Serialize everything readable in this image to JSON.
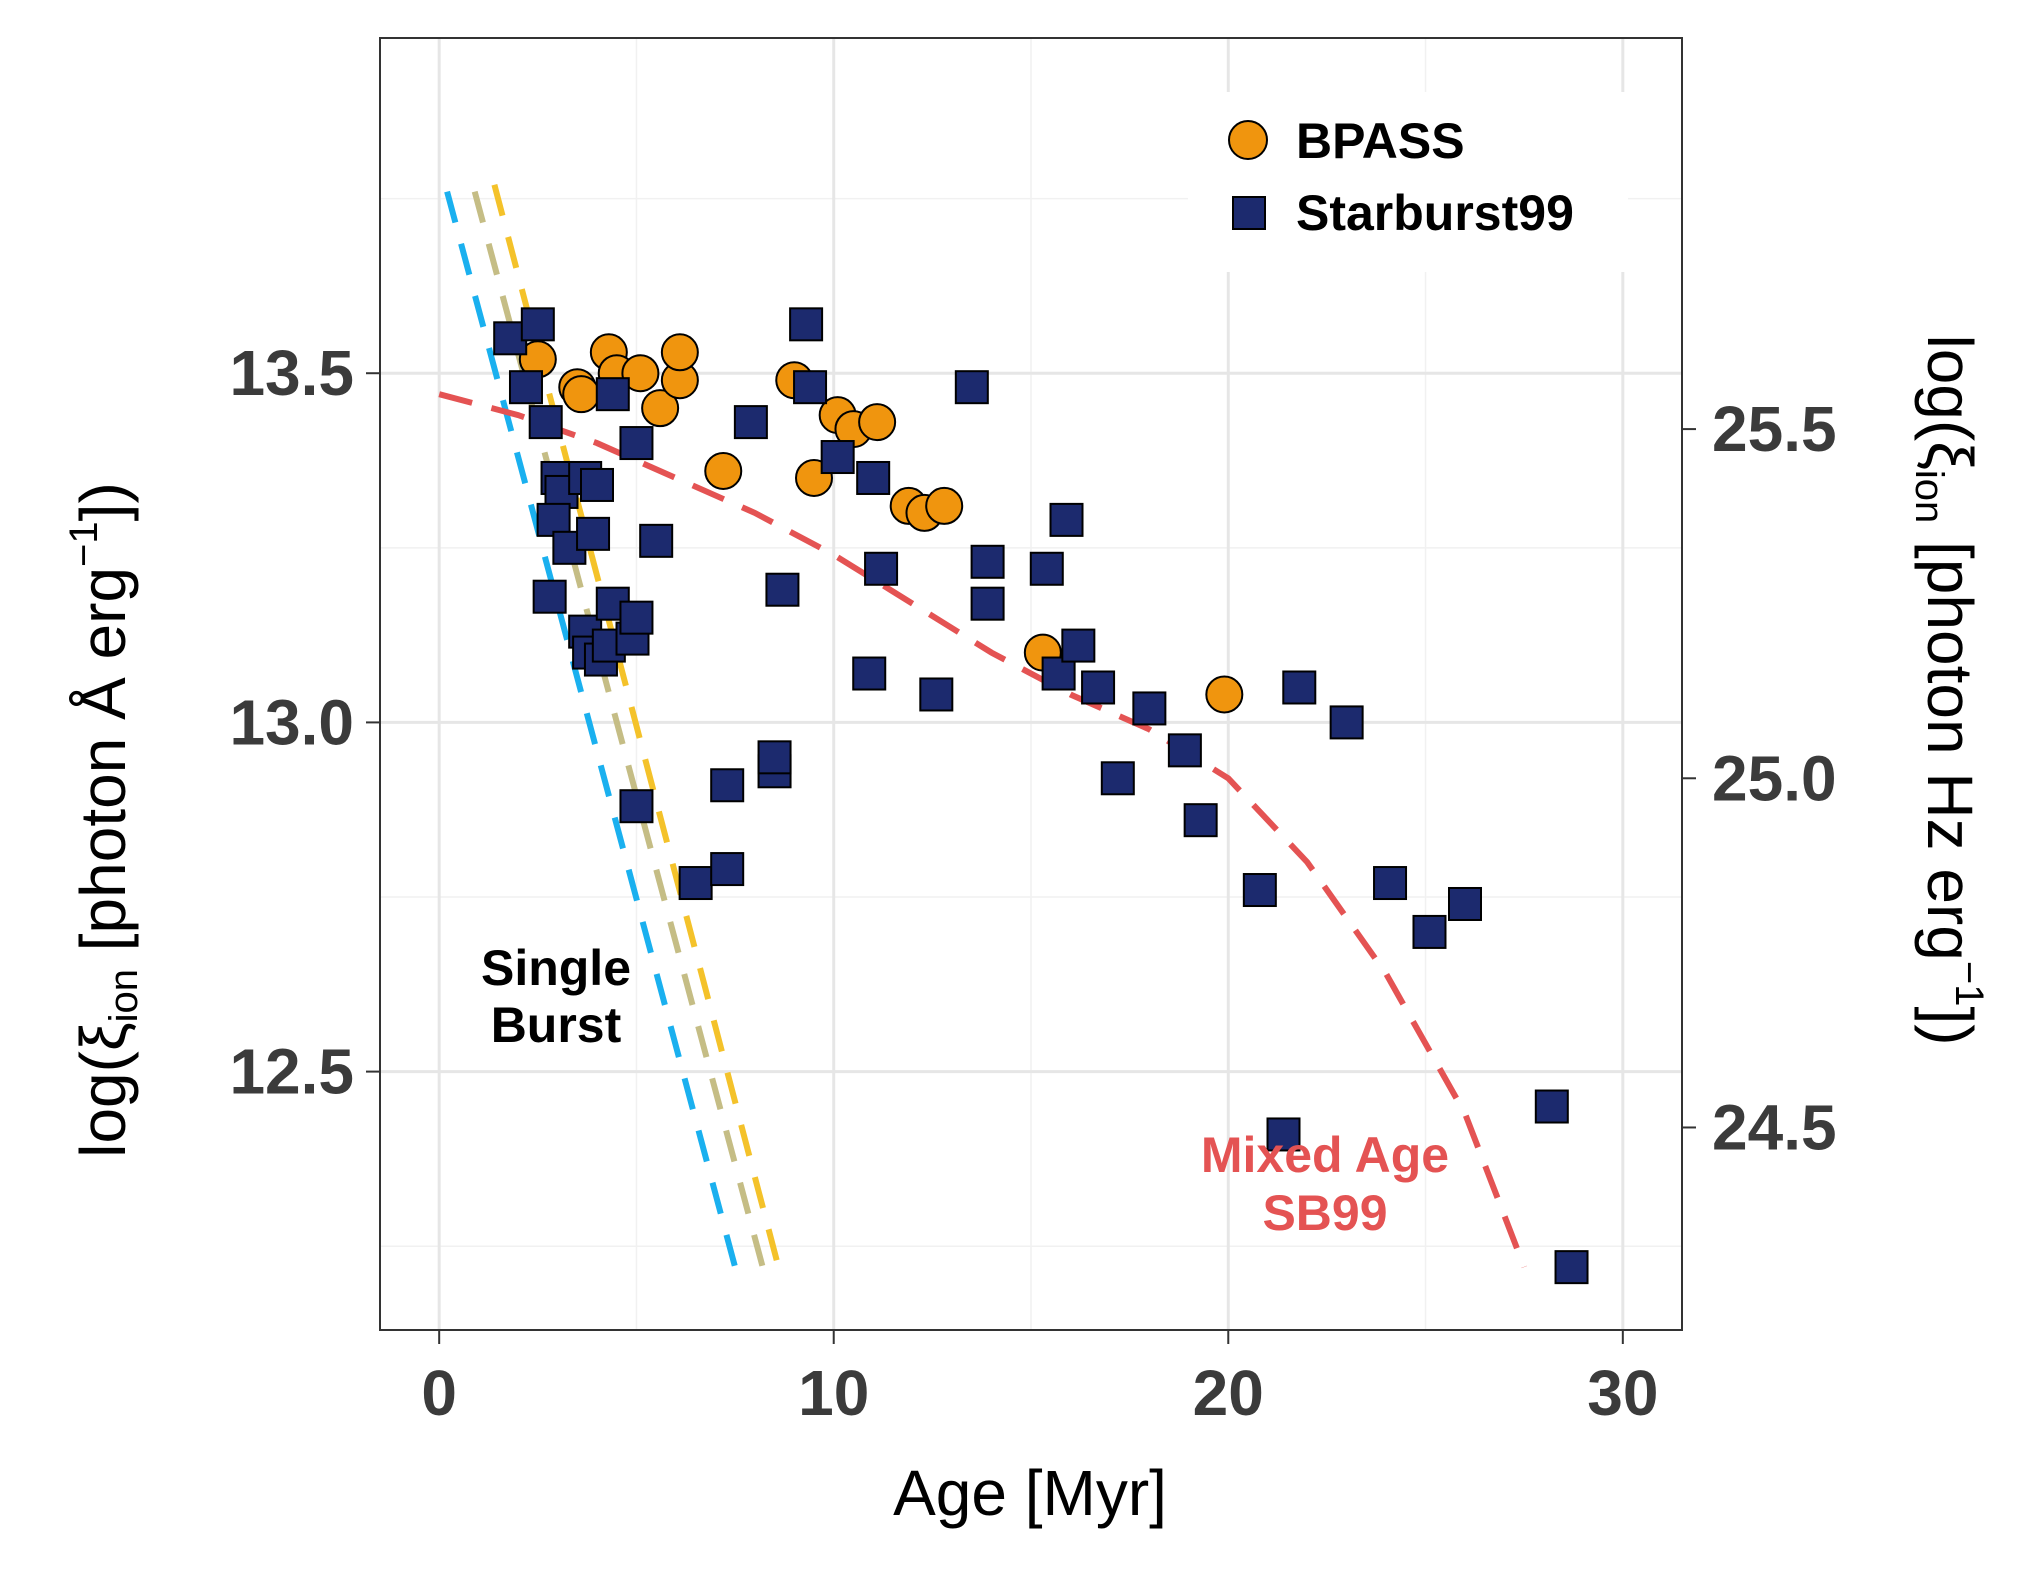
{
  "chart_data": {
    "type": "scatter",
    "title": "",
    "xlabel": "Age [Myr]",
    "ylabel_prefix": "log(ξ",
    "ylabel_sub": "ion",
    "ylabel_suffix": " [photon Å erg",
    "ylabel_sup": "−1",
    "ylabel_end": "])",
    "y2label_prefix": "log(ξ",
    "y2label_sub": "ion",
    "y2label_suffix": " [photon Hz erg",
    "y2label_sup": "−1",
    "y2label_end": "])",
    "xlim": [
      -1.5,
      31.5
    ],
    "ylim": [
      12.13,
      13.98
    ],
    "xticks": [
      0,
      10,
      20,
      30
    ],
    "xtick_labels": [
      "0",
      "10",
      "20",
      "30"
    ],
    "yticks": [
      12.5,
      13.0,
      13.5
    ],
    "ytick_labels": [
      "12.5",
      "13.0",
      "13.5"
    ],
    "y2_offset": 12.08,
    "y2ticks": [
      24.5,
      25.0,
      25.5
    ],
    "y2tick_labels": [
      "24.5",
      "25.0",
      "25.5"
    ],
    "grid": true,
    "legend_position": "top-right",
    "series": [
      {
        "name": "BPASS",
        "marker": "circle",
        "color": "#f0950e",
        "points": [
          [
            2.5,
            13.52
          ],
          [
            3.5,
            13.48
          ],
          [
            3.6,
            13.47
          ],
          [
            4.3,
            13.53
          ],
          [
            4.5,
            13.5
          ],
          [
            5.1,
            13.5
          ],
          [
            5.6,
            13.45
          ],
          [
            6.1,
            13.49
          ],
          [
            6.1,
            13.53
          ],
          [
            7.2,
            13.36
          ],
          [
            9.0,
            13.49
          ],
          [
            9.5,
            13.35
          ],
          [
            10.1,
            13.44
          ],
          [
            10.5,
            13.42
          ],
          [
            11.1,
            13.43
          ],
          [
            11.9,
            13.31
          ],
          [
            12.3,
            13.3
          ],
          [
            12.8,
            13.31
          ],
          [
            15.3,
            13.1
          ],
          [
            19.9,
            13.04
          ]
        ]
      },
      {
        "name": "Starburst99",
        "marker": "square",
        "color": "#1c2a6e",
        "points": [
          [
            1.8,
            13.55
          ],
          [
            2.2,
            13.48
          ],
          [
            2.5,
            13.57
          ],
          [
            2.7,
            13.43
          ],
          [
            3.0,
            13.35
          ],
          [
            3.1,
            13.33
          ],
          [
            2.9,
            13.29
          ],
          [
            3.3,
            13.25
          ],
          [
            3.7,
            13.35
          ],
          [
            4.0,
            13.34
          ],
          [
            3.9,
            13.27
          ],
          [
            4.4,
            13.47
          ],
          [
            5.0,
            13.4
          ],
          [
            5.5,
            13.26
          ],
          [
            2.8,
            13.18
          ],
          [
            3.7,
            13.13
          ],
          [
            4.4,
            13.17
          ],
          [
            3.8,
            13.1
          ],
          [
            4.1,
            13.09
          ],
          [
            4.3,
            13.11
          ],
          [
            4.9,
            13.12
          ],
          [
            5.0,
            13.15
          ],
          [
            5.0,
            12.88
          ],
          [
            6.5,
            12.77
          ],
          [
            7.3,
            12.91
          ],
          [
            7.3,
            12.79
          ],
          [
            7.9,
            13.43
          ],
          [
            8.5,
            12.93
          ],
          [
            8.5,
            12.95
          ],
          [
            8.7,
            13.19
          ],
          [
            9.3,
            13.57
          ],
          [
            9.4,
            13.48
          ],
          [
            10.1,
            13.38
          ],
          [
            10.9,
            13.07
          ],
          [
            11.0,
            13.35
          ],
          [
            11.2,
            13.22
          ],
          [
            12.6,
            13.04
          ],
          [
            13.5,
            13.48
          ],
          [
            13.9,
            13.23
          ],
          [
            13.9,
            13.17
          ],
          [
            15.4,
            13.22
          ],
          [
            15.7,
            13.07
          ],
          [
            15.9,
            13.29
          ],
          [
            16.2,
            13.11
          ],
          [
            16.7,
            13.05
          ],
          [
            17.2,
            12.92
          ],
          [
            18.0,
            13.02
          ],
          [
            18.9,
            12.96
          ],
          [
            19.3,
            12.86
          ],
          [
            20.8,
            12.76
          ],
          [
            21.8,
            13.05
          ],
          [
            23.0,
            13.0
          ],
          [
            24.1,
            12.77
          ],
          [
            25.1,
            12.7
          ],
          [
            26.0,
            12.74
          ],
          [
            21.4,
            12.41
          ],
          [
            28.2,
            12.45
          ],
          [
            28.7,
            12.22
          ]
        ]
      }
    ],
    "curves": [
      {
        "name": "single-burst-blue",
        "color": "#1ab0ef",
        "x": [
          0.2,
          7.5
        ],
        "y": [
          13.76,
          12.22
        ]
      },
      {
        "name": "single-burst-khaki",
        "color": "#c5bd85",
        "x": [
          0.9,
          8.2
        ],
        "y": [
          13.76,
          12.22
        ]
      },
      {
        "name": "single-burst-yellow",
        "color": "#f4c22a",
        "x": [
          1.4,
          8.6
        ],
        "y": [
          13.77,
          12.22
        ]
      },
      {
        "name": "mixed-age-sb99",
        "color": "#e45353",
        "x": [
          0,
          2,
          4,
          6,
          8,
          10,
          12,
          14,
          16,
          18,
          20,
          22,
          24,
          26,
          27.5
        ],
        "y": [
          13.47,
          13.44,
          13.4,
          13.35,
          13.3,
          13.24,
          13.17,
          13.1,
          13.04,
          12.99,
          12.92,
          12.8,
          12.64,
          12.44,
          12.22
        ]
      }
    ],
    "annotations": [
      {
        "line1": "Single",
        "line2": "Burst",
        "color": "#000000"
      },
      {
        "line1": "Mixed Age",
        "line2": "SB99",
        "color": "#e45353"
      }
    ]
  }
}
